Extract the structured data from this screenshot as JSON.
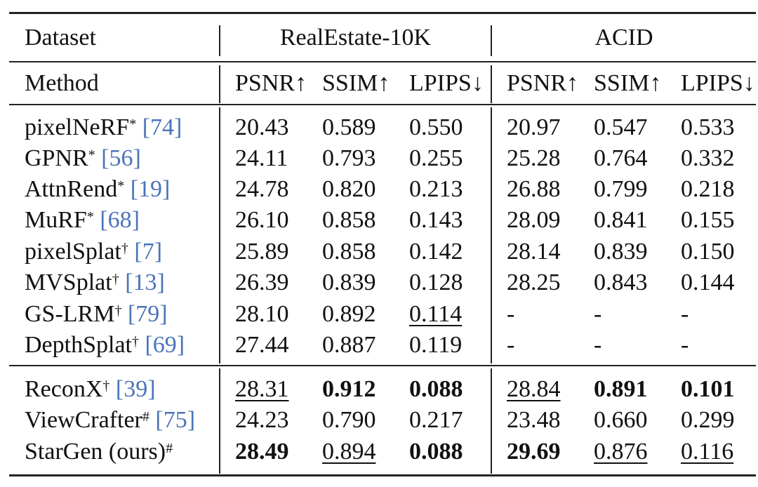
{
  "header": {
    "dataset_label": "Dataset",
    "method_label": "Method",
    "group1": "RealEstate-10K",
    "group2": "ACID",
    "metrics": [
      "PSNR↑",
      "SSIM↑",
      "LPIPS↓",
      "PSNR↑",
      "SSIM↑",
      "LPIPS↓"
    ]
  },
  "rows": [
    {
      "name": "pixelNeRF",
      "mark": "*",
      "ref": "[74]",
      "values": [
        "20.43",
        "0.589",
        "0.550",
        "20.97",
        "0.547",
        "0.533"
      ]
    },
    {
      "name": "GPNR",
      "mark": "*",
      "ref": "[56]",
      "values": [
        "24.11",
        "0.793",
        "0.255",
        "25.28",
        "0.764",
        "0.332"
      ]
    },
    {
      "name": "AttnRend",
      "mark": "*",
      "ref": "[19]",
      "values": [
        "24.78",
        "0.820",
        "0.213",
        "26.88",
        "0.799",
        "0.218"
      ]
    },
    {
      "name": "MuRF",
      "mark": "*",
      "ref": "[68]",
      "values": [
        "26.10",
        "0.858",
        "0.143",
        "28.09",
        "0.841",
        "0.155"
      ]
    },
    {
      "name": "pixelSplat",
      "mark": "†",
      "ref": "[7]",
      "values": [
        "25.89",
        "0.858",
        "0.142",
        "28.14",
        "0.839",
        "0.150"
      ]
    },
    {
      "name": "MVSplat",
      "mark": "†",
      "ref": "[13]",
      "values": [
        "26.39",
        "0.839",
        "0.128",
        "28.25",
        "0.843",
        "0.144"
      ]
    },
    {
      "name": "GS-LRM",
      "mark": "†",
      "ref": "[79]",
      "values": [
        "28.10",
        "0.892",
        "0.114",
        "-",
        "-",
        "-"
      ]
    },
    {
      "name": "DepthSplat",
      "mark": "†",
      "ref": "[69]",
      "values": [
        "27.44",
        "0.887",
        "0.119",
        "-",
        "-",
        "-"
      ]
    },
    {
      "name": "ReconX",
      "mark": "†",
      "ref": "[39]",
      "values": [
        "28.31",
        "0.912",
        "0.088",
        "28.84",
        "0.891",
        "0.101"
      ]
    },
    {
      "name": "ViewCrafter",
      "mark": "#",
      "ref": "[75]",
      "values": [
        "24.23",
        "0.790",
        "0.217",
        "23.48",
        "0.660",
        "0.299"
      ]
    },
    {
      "name": "StarGen (ours)",
      "mark": "#",
      "ref": "",
      "values": [
        "28.49",
        "0.894",
        "0.088",
        "29.69",
        "0.876",
        "0.116"
      ]
    }
  ],
  "bold_cells": [
    "8.1",
    "8.2",
    "8.4",
    "8.5",
    "10.0",
    "10.2",
    "10.3"
  ],
  "underline_cells": [
    "6.2",
    "8.0",
    "8.3",
    "10.1",
    "10.4",
    "10.5"
  ],
  "ref_color": "#4a74b9"
}
